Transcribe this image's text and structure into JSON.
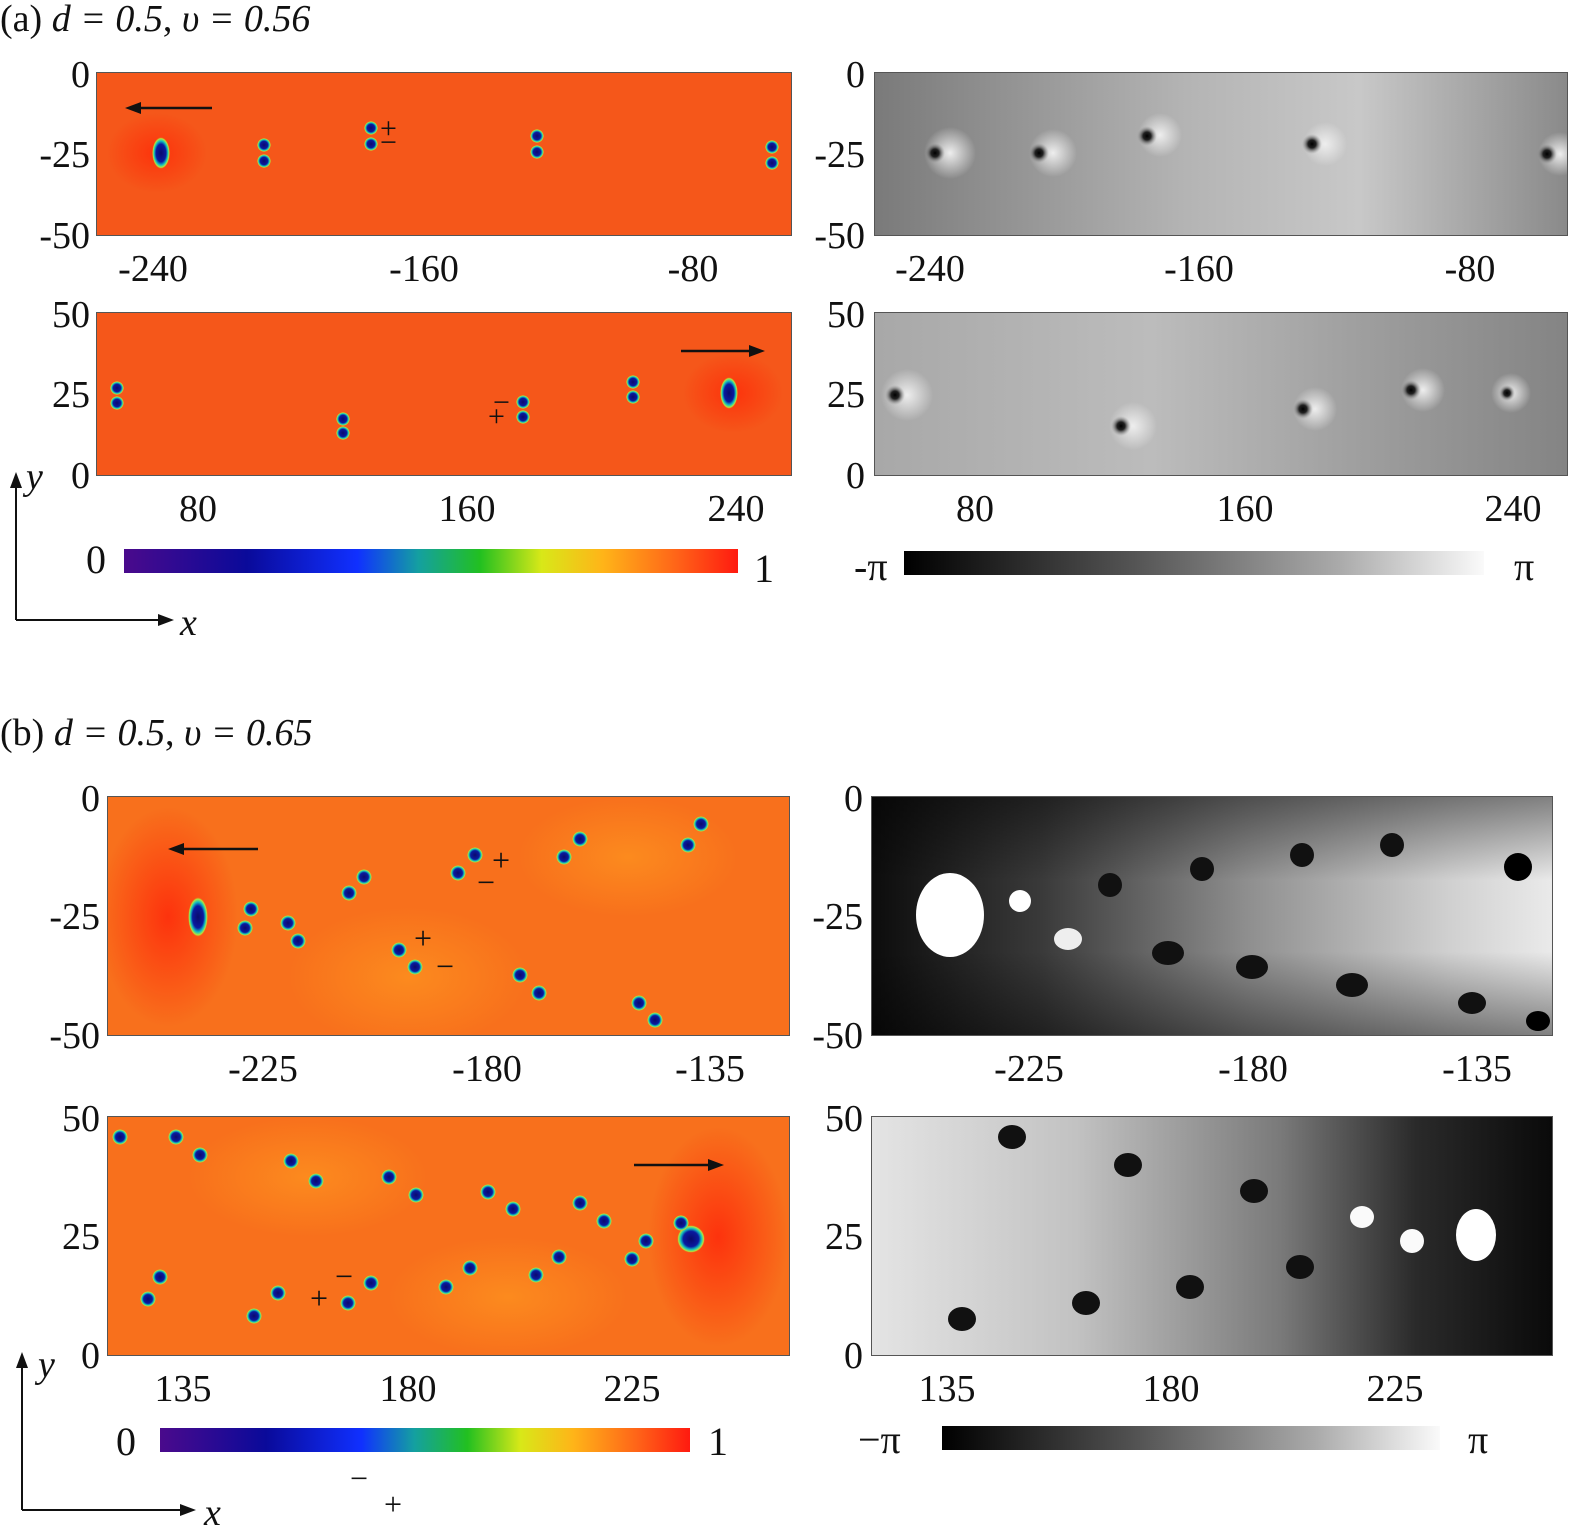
{
  "a": {
    "label": "(a)",
    "d_expr": "d = 0.5",
    "v_expr": "υ = 0.56",
    "top": {
      "yticks": [
        "0",
        "-25",
        "-50"
      ],
      "xticks": [
        "-240",
        "-160",
        "-80"
      ]
    },
    "bottom": {
      "yticks": [
        "50",
        "25",
        "0"
      ],
      "xticks": [
        "80",
        "160",
        "240"
      ]
    },
    "density_colorbar": {
      "min": "0",
      "max": "1"
    },
    "phase_colorbar": {
      "min": "-π",
      "max": "π"
    },
    "axes": {
      "x": "x",
      "y": "y"
    },
    "signs": {
      "plus": "+",
      "minus": "−"
    }
  },
  "b": {
    "label": "(b)",
    "d_expr": "d = 0.5",
    "v_expr": "υ = 0.65",
    "top": {
      "yticks": [
        "0",
        "-25",
        "-50"
      ],
      "xticks": [
        "-225",
        "-180",
        "-135"
      ]
    },
    "bottom": {
      "yticks": [
        "50",
        "25",
        "0"
      ],
      "xticks": [
        "135",
        "180",
        "225"
      ]
    },
    "density_colorbar": {
      "min": "0",
      "max": "1"
    },
    "phase_colorbar": {
      "min": "−π",
      "max": "π"
    },
    "axes": {
      "x": "x",
      "y": "y"
    },
    "signs": {
      "plus": "+",
      "minus": "−"
    }
  },
  "colors": {
    "field_orange": "#f55a14",
    "field_bright": "#ff6a10",
    "vortex_core": "#0a0a6e",
    "ring": "#19c8c8"
  }
}
